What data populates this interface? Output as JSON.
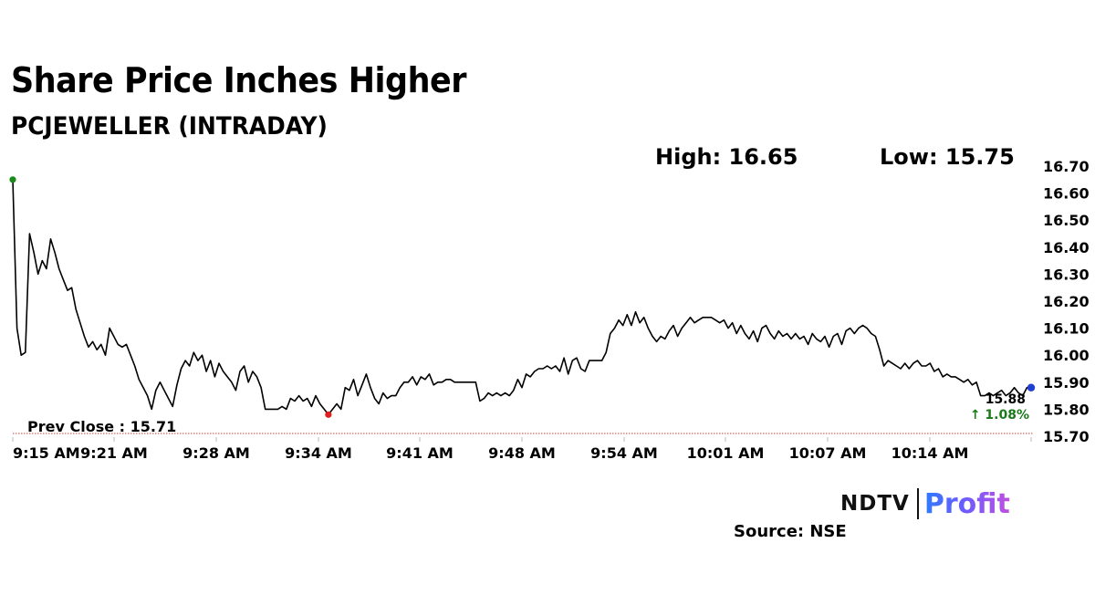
{
  "header": {
    "title": "Share Price Inches Higher",
    "subtitle": "PCJEWELLER (INTRADAY)"
  },
  "stats": {
    "high_label": "High: 16.65",
    "low_label": "Low: 15.75"
  },
  "branding": {
    "ndtv": "NDTV",
    "profit": "Profit",
    "source": "Source: NSE"
  },
  "colors": {
    "line": "#000000",
    "high_marker": "#1a8a1a",
    "low_marker": "#e02020",
    "last_marker": "#1f3fd1",
    "change_up": "#1a7a1a",
    "prev_close_line": "#c04040"
  },
  "chart_data": {
    "type": "line",
    "x_tick_labels": [
      "9:15 AM",
      "9:21 AM",
      "9:28 AM",
      "9:34 AM",
      "9:41 AM",
      "9:48 AM",
      "9:54 AM",
      "10:01 AM",
      "10:07 AM",
      "10:14 AM"
    ],
    "x_start": "9:15 AM",
    "x_end": "10:20 AM",
    "ylim": [
      15.7,
      16.7
    ],
    "y_ticks": [
      "16.70",
      "16.60",
      "16.50",
      "16.40",
      "16.30",
      "16.20",
      "16.10",
      "16.00",
      "15.90",
      "15.80",
      "15.70"
    ],
    "series": [
      {
        "values": [
          16.65,
          16.1,
          16.0,
          16.01,
          16.45,
          16.38,
          16.3,
          16.35,
          16.32,
          16.43,
          16.38,
          16.32,
          16.28,
          16.24,
          16.25,
          16.17,
          16.12,
          16.07,
          16.03,
          16.05,
          16.02,
          16.04,
          16.0,
          16.1,
          16.07,
          16.04,
          16.03,
          16.04,
          16.0,
          15.96,
          15.91,
          15.88,
          15.85,
          15.8,
          15.87,
          15.9,
          15.87,
          15.84,
          15.81,
          15.89,
          15.95,
          15.98,
          15.96,
          16.01,
          15.98,
          16.0,
          15.94,
          15.98,
          15.92,
          15.97,
          15.94,
          15.92,
          15.9,
          15.87,
          15.94,
          15.96,
          15.9,
          15.94,
          15.92,
          15.88,
          15.8,
          15.8,
          15.8,
          15.8,
          15.81,
          15.8,
          15.84,
          15.83,
          15.85,
          15.83,
          15.84,
          15.81,
          15.85,
          15.82,
          15.8,
          15.78,
          15.8,
          15.82,
          15.8,
          15.88,
          15.87,
          15.91,
          15.85,
          15.89,
          15.93,
          15.88,
          15.84,
          15.82,
          15.86,
          15.84,
          15.85,
          15.85,
          15.88,
          15.9,
          15.9,
          15.92,
          15.89,
          15.92,
          15.91,
          15.93,
          15.89,
          15.9,
          15.9,
          15.91,
          15.91,
          15.9,
          15.9,
          15.9,
          15.9,
          15.9,
          15.9,
          15.83,
          15.84,
          15.86,
          15.85,
          15.86,
          15.85,
          15.86,
          15.85,
          15.87,
          15.91,
          15.88,
          15.93,
          15.92,
          15.94,
          15.95,
          15.95,
          15.96,
          15.95,
          15.96,
          15.94,
          15.99,
          15.93,
          15.98,
          15.99,
          15.95,
          15.94,
          15.98,
          15.98,
          15.98,
          15.98,
          16.01,
          16.08,
          16.1,
          16.13,
          16.11,
          16.15,
          16.11,
          16.16,
          16.12,
          16.14,
          16.1,
          16.07,
          16.05,
          16.07,
          16.06,
          16.09,
          16.11,
          16.07,
          16.1,
          16.12,
          16.14,
          16.12,
          16.13,
          16.14,
          16.14,
          16.14,
          16.13,
          16.12,
          16.13,
          16.1,
          16.12,
          16.08,
          16.11,
          16.08,
          16.06,
          16.09,
          16.05,
          16.1,
          16.11,
          16.08,
          16.06,
          16.09,
          16.07,
          16.08,
          16.06,
          16.08,
          16.06,
          16.07,
          16.04,
          16.08,
          16.06,
          16.05,
          16.07,
          16.03,
          16.07,
          16.08,
          16.04,
          16.09,
          16.1,
          16.08,
          16.1,
          16.11,
          16.1,
          16.08,
          16.07,
          16.02,
          15.96,
          15.98,
          15.97,
          15.96,
          15.95,
          15.97,
          15.95,
          15.97,
          15.98,
          15.96,
          15.96,
          15.97,
          15.94,
          15.95,
          15.92,
          15.93,
          15.92,
          15.92,
          15.91,
          15.9,
          15.91,
          15.89,
          15.9,
          15.85,
          15.85,
          15.86,
          15.85,
          15.86,
          15.87,
          15.85,
          15.86,
          15.88,
          15.86,
          15.85,
          15.88,
          15.88
        ]
      }
    ],
    "high": {
      "value": 16.65,
      "time": "9:15 AM"
    },
    "low": {
      "value": 15.78,
      "time": "9:30 AM"
    },
    "prev_close": {
      "label": "Prev Close : 15.71",
      "value": 15.71
    },
    "last": {
      "value": 15.88,
      "label": "15.88",
      "change": "1.08%",
      "arrow": "↑"
    },
    "grid": false
  }
}
